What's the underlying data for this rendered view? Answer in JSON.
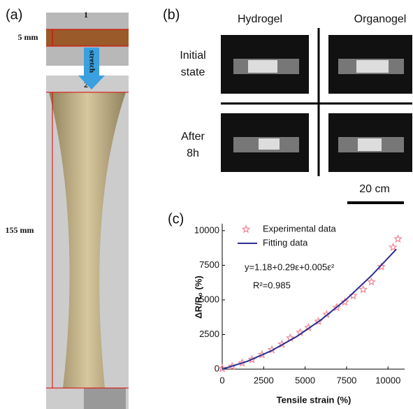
{
  "panels": {
    "a": {
      "label": "(a)",
      "top_number": "1",
      "bottom_number": "2",
      "short_length": "5 mm",
      "arrow": "stretch",
      "long_length": "155 mm"
    },
    "b": {
      "label": "(b)",
      "columns": [
        "Hydrogel",
        "Organogel"
      ],
      "rows": [
        [
          "Initial",
          "state"
        ],
        [
          "After",
          "8h"
        ]
      ],
      "scale": "20 cm"
    }
  },
  "chart_data": {
    "type": "scatter",
    "panel_label": "(c)",
    "x_label": "Tensile strain (%)",
    "y_label": "ΔR/R₀ (%)",
    "annotations": [
      "y=1.18+0.29ε+0.005ε²",
      "R²=0.985"
    ],
    "xlim": [
      0,
      11000
    ],
    "xticks": [
      0,
      2500,
      5000,
      7500,
      10000
    ],
    "ylim": [
      0,
      10500
    ],
    "yticks": [
      0,
      2500,
      5000,
      7500,
      10000
    ],
    "legend": "upper left",
    "series": [
      {
        "name": "Experimental data",
        "color": "#f08a9a",
        "marker": "star",
        "x": [
          0,
          600,
          1200,
          1800,
          2400,
          3000,
          3600,
          4100,
          4700,
          5200,
          5800,
          6300,
          6900,
          7400,
          7900,
          8500,
          9000,
          9600,
          10300,
          10600
        ],
        "values": [
          50,
          200,
          450,
          700,
          1050,
          1400,
          1800,
          2250,
          2650,
          3000,
          3450,
          3950,
          4450,
          4850,
          5300,
          5750,
          6300,
          7400,
          8800,
          9400
        ]
      },
      {
        "name": "Fitting data",
        "color": "#2b2f8f",
        "marker": "line",
        "x": [
          0,
          1500,
          3000,
          4500,
          6000,
          7500,
          9000,
          10500
        ],
        "values": [
          0,
          560,
          1350,
          2360,
          3600,
          5060,
          6750,
          8660
        ]
      }
    ]
  }
}
